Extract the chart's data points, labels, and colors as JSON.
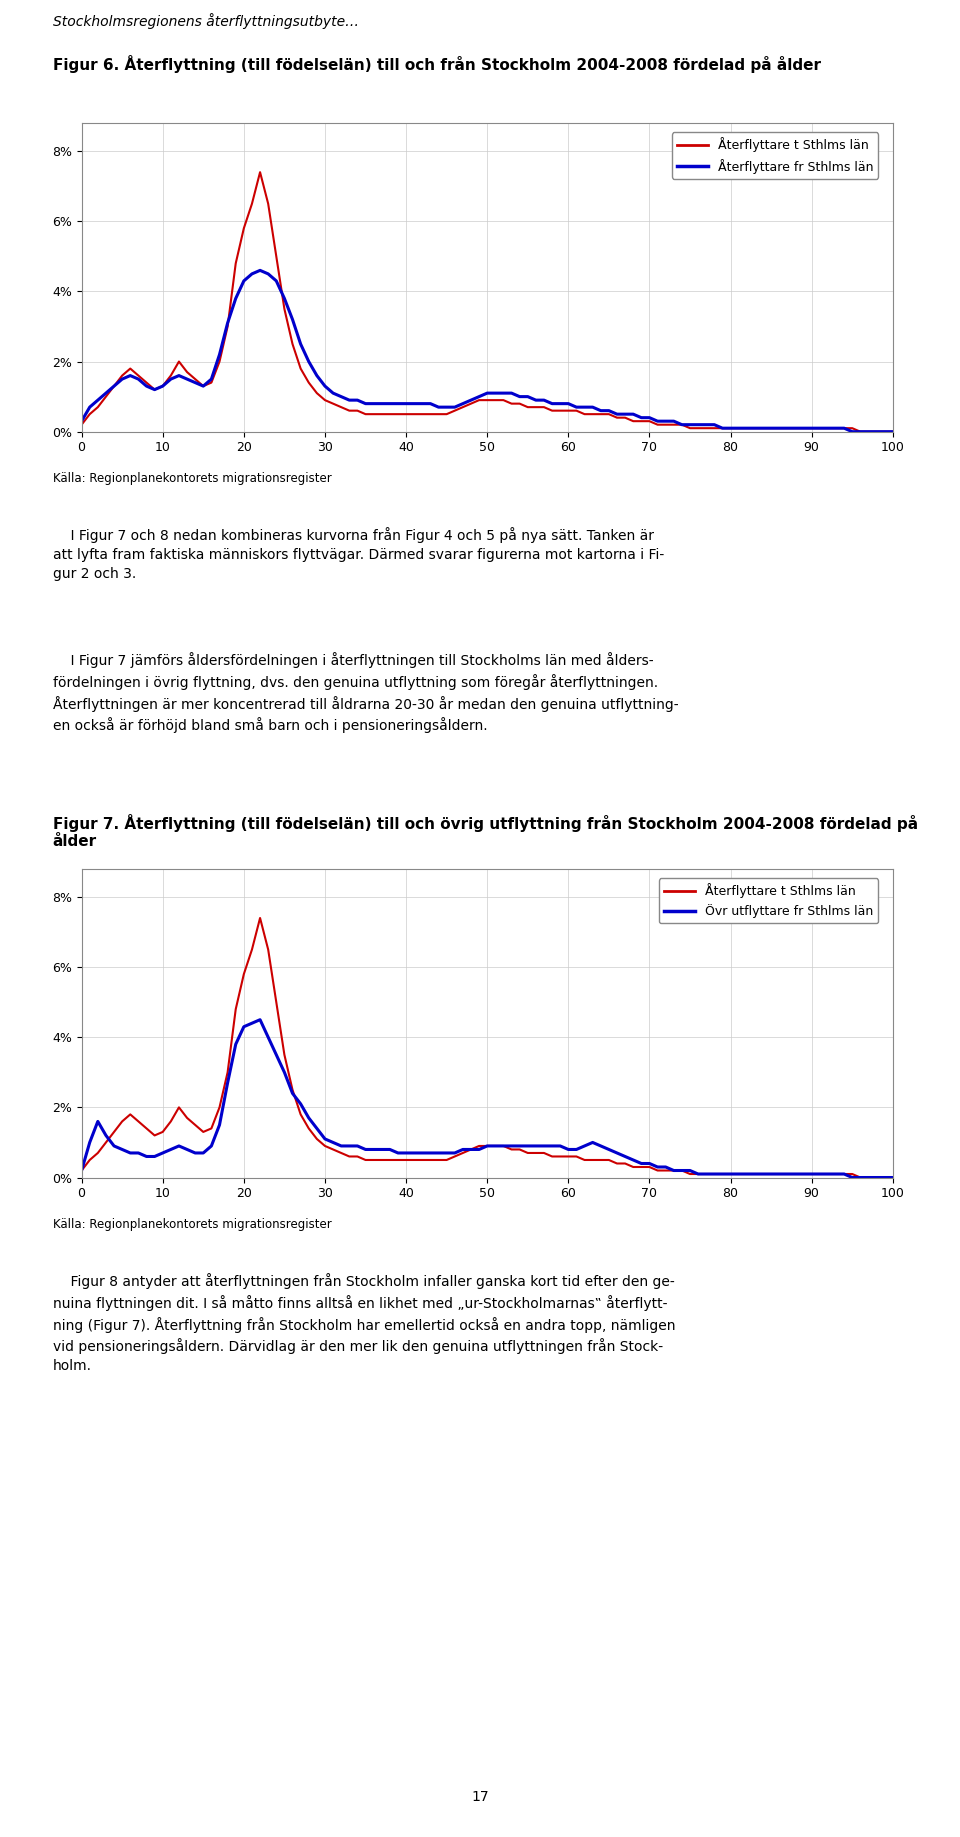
{
  "header": "Stockholmsregionens återflyttningsutbyte…",
  "fig6_title": "Figur 6. Återflyttning (till födelselän) till och från Stockholm 2004-2008 fördelad på ålder",
  "fig7_title_line1": "Figur 7. Återflyttning (till födelselän) till och övrig utflyttning från Stockholm 2004-2008 fördelad på",
  "fig7_title_line2": "ålder",
  "source_text": "Källa: Regionplanekontorets migrationsregister",
  "legend6_line1": "Återflyttare t Sthlms län",
  "legend6_line2": "Återflyttare fr Sthlms län",
  "legend7_line1": "Återflyttare t Sthlms län",
  "legend7_line2": "Övr utflyttare fr Sthlms län",
  "p1_lines": [
    "    I Figur 7 och 8 nedan kombineras kurvorna från Figur 4 och 5 på nya sätt. Tanken är",
    "att lyfta fram faktiska människors flyttvägar. Därmed svarar figurerna mot kartorna i Fi-",
    "gur 2 och 3."
  ],
  "p2_lines": [
    "    I Figur 7 jämförs åldersfördelningen i återflyttningen till Stockholms län med ålders-",
    "fördelningen i övrig flyttning, dvs. den genuina utflyttning som föregår återflyttningen.",
    "Återflyttningen är mer koncentrerad till åldrarna 20-30 år medan den genuina utflyttning-",
    "en också är förhöjd bland små barn och i pensioneringsåldern."
  ],
  "p3_lines": [
    "    Figur 8 antyder att återflyttningen från Stockholm infaller ganska kort tid efter den ge-",
    "nuina flyttningen dit. I så måtto finns alltså en likhet med „ur-Stockholmarnas‟ återflytt-",
    "ning (Figur 7). Återflyttning från Stockholm har emellertid också en andra topp, nämligen",
    "vid pensioneringsåldern. Därvidlag är den mer lik den genuina utflyttningen från Stock-",
    "holm."
  ],
  "page_number": "17",
  "xlim": [
    0,
    100
  ],
  "ylim": [
    0,
    0.088
  ],
  "yticks": [
    0,
    0.02,
    0.04,
    0.06,
    0.08
  ],
  "yticklabels": [
    "0%",
    "2%",
    "4%",
    "6%",
    "8%"
  ],
  "xticks": [
    0,
    10,
    20,
    30,
    40,
    50,
    60,
    70,
    80,
    90,
    100
  ],
  "red_color": "#cc0000",
  "blue_color": "#0000cc",
  "fig6_red": [
    0.002,
    0.005,
    0.007,
    0.01,
    0.013,
    0.016,
    0.018,
    0.016,
    0.014,
    0.012,
    0.013,
    0.016,
    0.02,
    0.017,
    0.015,
    0.013,
    0.014,
    0.02,
    0.03,
    0.048,
    0.058,
    0.065,
    0.074,
    0.065,
    0.05,
    0.035,
    0.025,
    0.018,
    0.014,
    0.011,
    0.009,
    0.008,
    0.007,
    0.006,
    0.006,
    0.005,
    0.005,
    0.005,
    0.005,
    0.005,
    0.005,
    0.005,
    0.005,
    0.005,
    0.005,
    0.005,
    0.006,
    0.007,
    0.008,
    0.009,
    0.009,
    0.009,
    0.009,
    0.008,
    0.008,
    0.007,
    0.007,
    0.007,
    0.006,
    0.006,
    0.006,
    0.006,
    0.005,
    0.005,
    0.005,
    0.005,
    0.004,
    0.004,
    0.003,
    0.003,
    0.003,
    0.002,
    0.002,
    0.002,
    0.002,
    0.001,
    0.001,
    0.001,
    0.001,
    0.001,
    0.001,
    0.001,
    0.001,
    0.001,
    0.001,
    0.001,
    0.001,
    0.001,
    0.001,
    0.001,
    0.001,
    0.001,
    0.001,
    0.001,
    0.001,
    0.001,
    0.0,
    0.0,
    0.0,
    0.0,
    0.0
  ],
  "fig6_blue": [
    0.003,
    0.007,
    0.009,
    0.011,
    0.013,
    0.015,
    0.016,
    0.015,
    0.013,
    0.012,
    0.013,
    0.015,
    0.016,
    0.015,
    0.014,
    0.013,
    0.015,
    0.022,
    0.031,
    0.038,
    0.043,
    0.045,
    0.046,
    0.045,
    0.043,
    0.038,
    0.032,
    0.025,
    0.02,
    0.016,
    0.013,
    0.011,
    0.01,
    0.009,
    0.009,
    0.008,
    0.008,
    0.008,
    0.008,
    0.008,
    0.008,
    0.008,
    0.008,
    0.008,
    0.007,
    0.007,
    0.007,
    0.008,
    0.009,
    0.01,
    0.011,
    0.011,
    0.011,
    0.011,
    0.01,
    0.01,
    0.009,
    0.009,
    0.008,
    0.008,
    0.008,
    0.007,
    0.007,
    0.007,
    0.006,
    0.006,
    0.005,
    0.005,
    0.005,
    0.004,
    0.004,
    0.003,
    0.003,
    0.003,
    0.002,
    0.002,
    0.002,
    0.002,
    0.002,
    0.001,
    0.001,
    0.001,
    0.001,
    0.001,
    0.001,
    0.001,
    0.001,
    0.001,
    0.001,
    0.001,
    0.001,
    0.001,
    0.001,
    0.001,
    0.001,
    0.0,
    0.0,
    0.0,
    0.0,
    0.0,
    0.0
  ],
  "fig7_red": [
    0.002,
    0.005,
    0.007,
    0.01,
    0.013,
    0.016,
    0.018,
    0.016,
    0.014,
    0.012,
    0.013,
    0.016,
    0.02,
    0.017,
    0.015,
    0.013,
    0.014,
    0.02,
    0.03,
    0.048,
    0.058,
    0.065,
    0.074,
    0.065,
    0.05,
    0.035,
    0.025,
    0.018,
    0.014,
    0.011,
    0.009,
    0.008,
    0.007,
    0.006,
    0.006,
    0.005,
    0.005,
    0.005,
    0.005,
    0.005,
    0.005,
    0.005,
    0.005,
    0.005,
    0.005,
    0.005,
    0.006,
    0.007,
    0.008,
    0.009,
    0.009,
    0.009,
    0.009,
    0.008,
    0.008,
    0.007,
    0.007,
    0.007,
    0.006,
    0.006,
    0.006,
    0.006,
    0.005,
    0.005,
    0.005,
    0.005,
    0.004,
    0.004,
    0.003,
    0.003,
    0.003,
    0.002,
    0.002,
    0.002,
    0.002,
    0.001,
    0.001,
    0.001,
    0.001,
    0.001,
    0.001,
    0.001,
    0.001,
    0.001,
    0.001,
    0.001,
    0.001,
    0.001,
    0.001,
    0.001,
    0.001,
    0.001,
    0.001,
    0.001,
    0.001,
    0.001,
    0.0,
    0.0,
    0.0,
    0.0,
    0.0
  ],
  "fig7_blue": [
    0.002,
    0.01,
    0.016,
    0.012,
    0.009,
    0.008,
    0.007,
    0.007,
    0.006,
    0.006,
    0.007,
    0.008,
    0.009,
    0.008,
    0.007,
    0.007,
    0.009,
    0.015,
    0.027,
    0.038,
    0.043,
    0.044,
    0.045,
    0.04,
    0.035,
    0.03,
    0.024,
    0.021,
    0.017,
    0.014,
    0.011,
    0.01,
    0.009,
    0.009,
    0.009,
    0.008,
    0.008,
    0.008,
    0.008,
    0.007,
    0.007,
    0.007,
    0.007,
    0.007,
    0.007,
    0.007,
    0.007,
    0.008,
    0.008,
    0.008,
    0.009,
    0.009,
    0.009,
    0.009,
    0.009,
    0.009,
    0.009,
    0.009,
    0.009,
    0.009,
    0.008,
    0.008,
    0.009,
    0.01,
    0.009,
    0.008,
    0.007,
    0.006,
    0.005,
    0.004,
    0.004,
    0.003,
    0.003,
    0.002,
    0.002,
    0.002,
    0.001,
    0.001,
    0.001,
    0.001,
    0.001,
    0.001,
    0.001,
    0.001,
    0.001,
    0.001,
    0.001,
    0.001,
    0.001,
    0.001,
    0.001,
    0.001,
    0.001,
    0.001,
    0.001,
    0.0,
    0.0,
    0.0,
    0.0,
    0.0,
    0.0
  ]
}
